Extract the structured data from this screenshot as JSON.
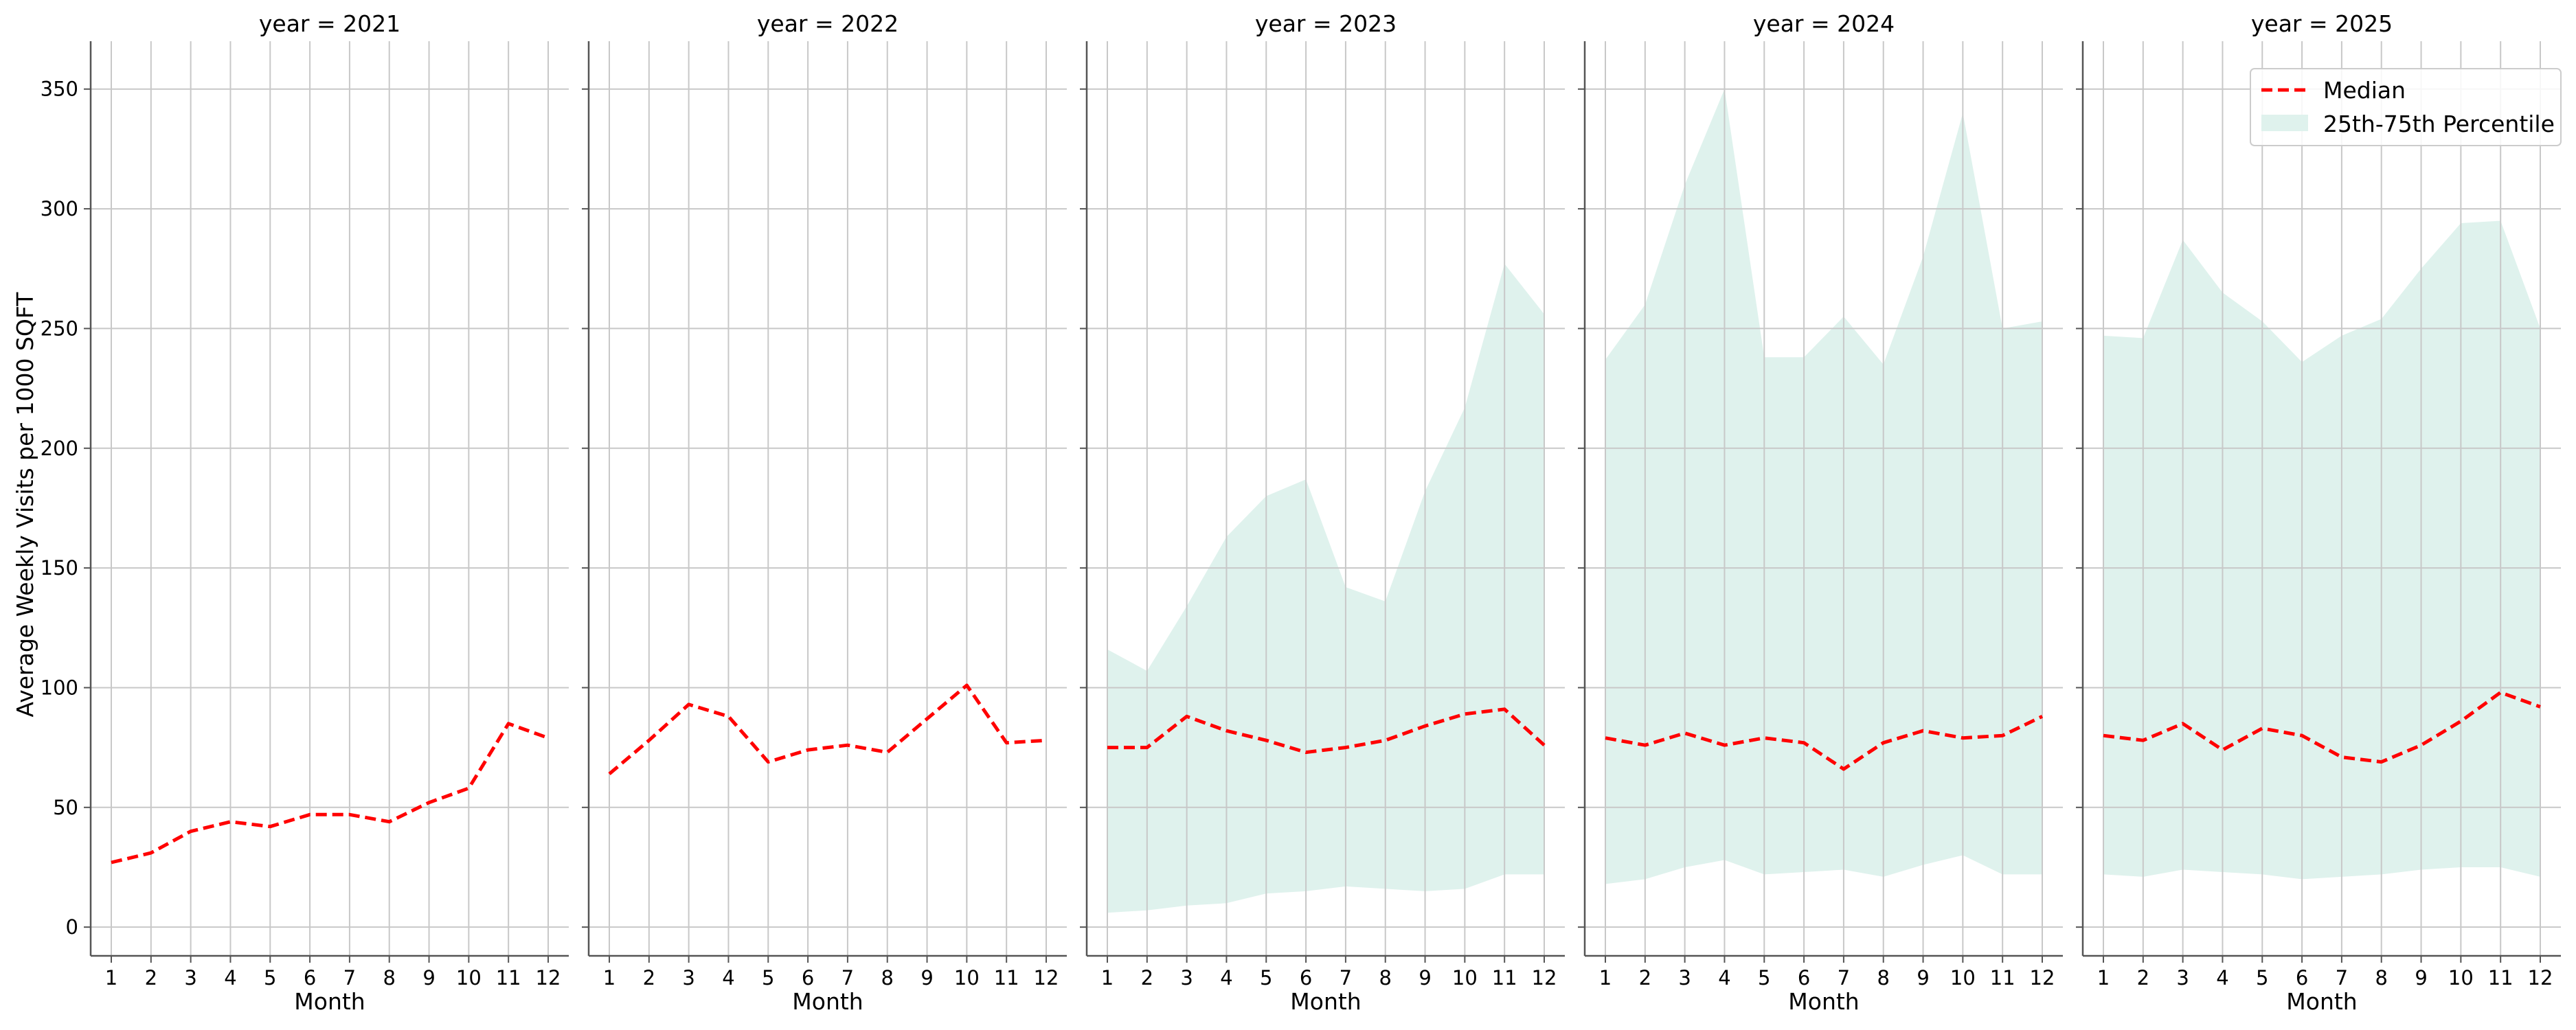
{
  "chart_data": {
    "type": "line",
    "ylabel": "Average Weekly Visits per 1000 SQFT",
    "xlabel": "Month",
    "ylim": [
      -12,
      370
    ],
    "yticks": [
      0,
      50,
      100,
      150,
      200,
      250,
      300,
      350
    ],
    "xticks": [
      1,
      2,
      3,
      4,
      5,
      6,
      7,
      8,
      9,
      10,
      11,
      12
    ],
    "grid": true,
    "legend": {
      "placement": "top-right",
      "entries": [
        "Median",
        "25th-75th Percentile"
      ]
    },
    "colors": {
      "median": "#ff0000",
      "band": "#dff2ed",
      "grid": "#c8c8c8",
      "axis": "#555555"
    },
    "facets": [
      {
        "title": "year = 2021",
        "median": [
          27,
          31,
          40,
          44,
          42,
          47,
          47,
          44,
          52,
          58,
          85,
          79
        ],
        "p25": null,
        "p75": null
      },
      {
        "title": "year = 2022",
        "median": [
          64,
          78,
          93,
          88,
          69,
          74,
          76,
          73,
          87,
          101,
          77,
          78
        ],
        "p25": null,
        "p75": null
      },
      {
        "title": "year = 2023",
        "median": [
          75,
          75,
          88,
          82,
          78,
          73,
          75,
          78,
          84,
          89,
          91,
          76
        ],
        "p25": [
          6,
          7,
          9,
          10,
          14,
          15,
          17,
          16,
          15,
          16,
          22,
          22
        ],
        "p75": [
          116,
          107,
          134,
          163,
          180,
          187,
          142,
          136,
          182,
          217,
          277,
          256
        ]
      },
      {
        "title": "year = 2024",
        "median": [
          79,
          76,
          81,
          76,
          79,
          77,
          66,
          77,
          82,
          79,
          80,
          88
        ],
        "p25": [
          18,
          20,
          25,
          28,
          22,
          23,
          24,
          21,
          26,
          30,
          22,
          22
        ],
        "p75": [
          237,
          260,
          310,
          350,
          238,
          238,
          255,
          235,
          280,
          340,
          250,
          253
        ]
      },
      {
        "title": "year = 2025",
        "median": [
          80,
          78,
          85,
          74,
          83,
          80,
          71,
          69,
          76,
          86,
          98,
          92
        ],
        "p25": [
          22,
          21,
          24,
          23,
          22,
          20,
          21,
          22,
          24,
          25,
          25,
          21
        ],
        "p75": [
          247,
          246,
          287,
          265,
          253,
          236,
          247,
          254,
          275,
          294,
          295,
          250
        ]
      }
    ]
  }
}
